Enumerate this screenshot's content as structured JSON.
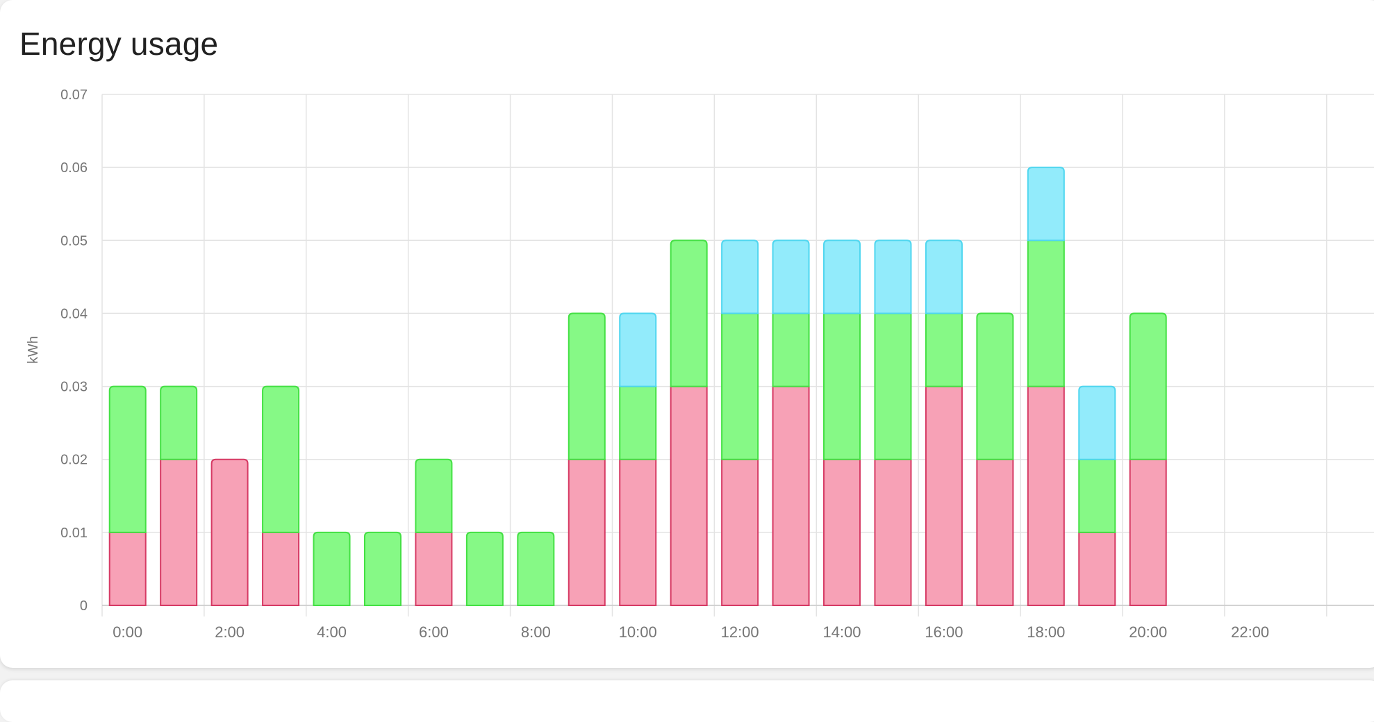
{
  "card": {
    "title": "Energy usage"
  },
  "colors": {
    "grid": "#e3e3e3",
    "pink_fill": "#f7a1b6",
    "pink_stroke": "#d63a64",
    "green_fill": "#86f986",
    "green_stroke": "#44e044",
    "blue_fill": "#92ebfb",
    "blue_stroke": "#4fd6ef"
  },
  "chart_data": {
    "type": "bar",
    "stacked": true,
    "ylabel": "kWh",
    "xlabel": "",
    "ylim": [
      0,
      0.07
    ],
    "y_ticks": [
      "0",
      "0.01",
      "0.02",
      "0.03",
      "0.04",
      "0.05",
      "0.06",
      "0.07"
    ],
    "x_ticks": [
      "0:00",
      "2:00",
      "4:00",
      "6:00",
      "8:00",
      "10:00",
      "12:00",
      "14:00",
      "16:00",
      "18:00",
      "20:00",
      "22:00"
    ],
    "categories": [
      "0",
      "1",
      "2",
      "3",
      "4",
      "5",
      "6",
      "7",
      "8",
      "9",
      "10",
      "11",
      "12",
      "13",
      "14",
      "15",
      "16",
      "17",
      "18",
      "19",
      "20",
      "21",
      "22",
      "23"
    ],
    "grid": true,
    "series": [
      {
        "color_key": "pink",
        "values": [
          0.01,
          0.02,
          0.02,
          0.01,
          0,
          0,
          0.01,
          0,
          0,
          0.02,
          0.02,
          0.03,
          0.02,
          0.03,
          0.02,
          0.02,
          0.03,
          0.02,
          0.03,
          0.01,
          0.02,
          0,
          0,
          0
        ]
      },
      {
        "color_key": "green",
        "values": [
          0.02,
          0.01,
          0,
          0.02,
          0.01,
          0.01,
          0.01,
          0.01,
          0.01,
          0.02,
          0.01,
          0.02,
          0.02,
          0.01,
          0.02,
          0.02,
          0.01,
          0.02,
          0.02,
          0.01,
          0.02,
          0,
          0,
          0
        ]
      },
      {
        "color_key": "blue",
        "values": [
          0,
          0,
          0,
          0,
          0,
          0,
          0,
          0,
          0,
          0,
          0.01,
          0,
          0.01,
          0.01,
          0.01,
          0.01,
          0.01,
          0,
          0.01,
          0.01,
          0,
          0,
          0,
          0
        ]
      }
    ]
  }
}
